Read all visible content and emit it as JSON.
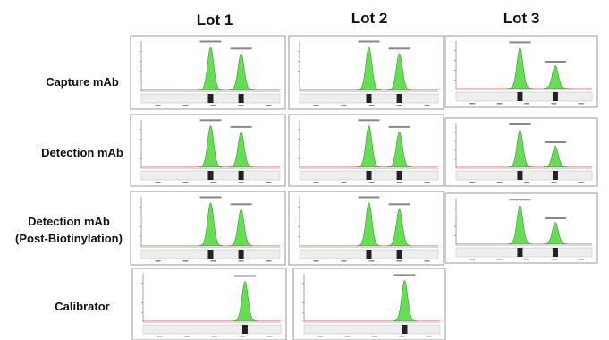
{
  "header": {
    "columns": [
      "Lot 1",
      "Lot 2",
      "Lot 3"
    ]
  },
  "rows": [
    {
      "label": [
        "Capture mAb"
      ]
    },
    {
      "label": [
        "Detection mAb"
      ]
    },
    {
      "label": [
        "Detection mAb",
        "(Post-Biotinylation)"
      ]
    },
    {
      "label": [
        "Calibrator"
      ]
    }
  ]
}
